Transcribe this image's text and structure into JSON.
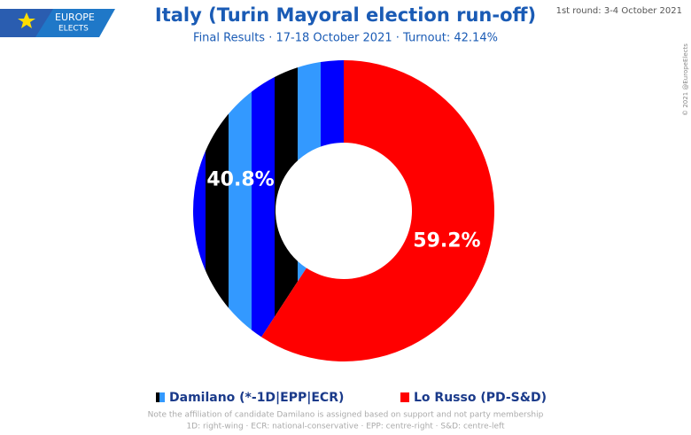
{
  "header": {
    "logo_top": "EUROPE",
    "logo_bottom": "ELECTS",
    "note": "1st round: 3-4 October 2021",
    "copyright": "© 2021 @EuropeElects"
  },
  "chart_data": {
    "type": "donut",
    "title": "Italy (Turin Mayoral election run-off)",
    "subtitle": "Final Results · 17-18 October 2021 ·   Turnout: 42.14%",
    "categories": [
      "Damilano (*-1D|EPP|ECR)",
      "Lo Russo (PD-S&D)"
    ],
    "values": [
      40.8,
      59.2
    ],
    "value_labels": [
      "40.8%",
      "59.2%"
    ],
    "colors": [
      "#0000ff",
      "#ff0000"
    ],
    "notes": [
      "Note the affiliation of candidate Damilano is assigned based on support and not party membership",
      "1D: right-wing · ECR: national-conservative · EPP: centre-right · S&D: centre-left"
    ]
  }
}
